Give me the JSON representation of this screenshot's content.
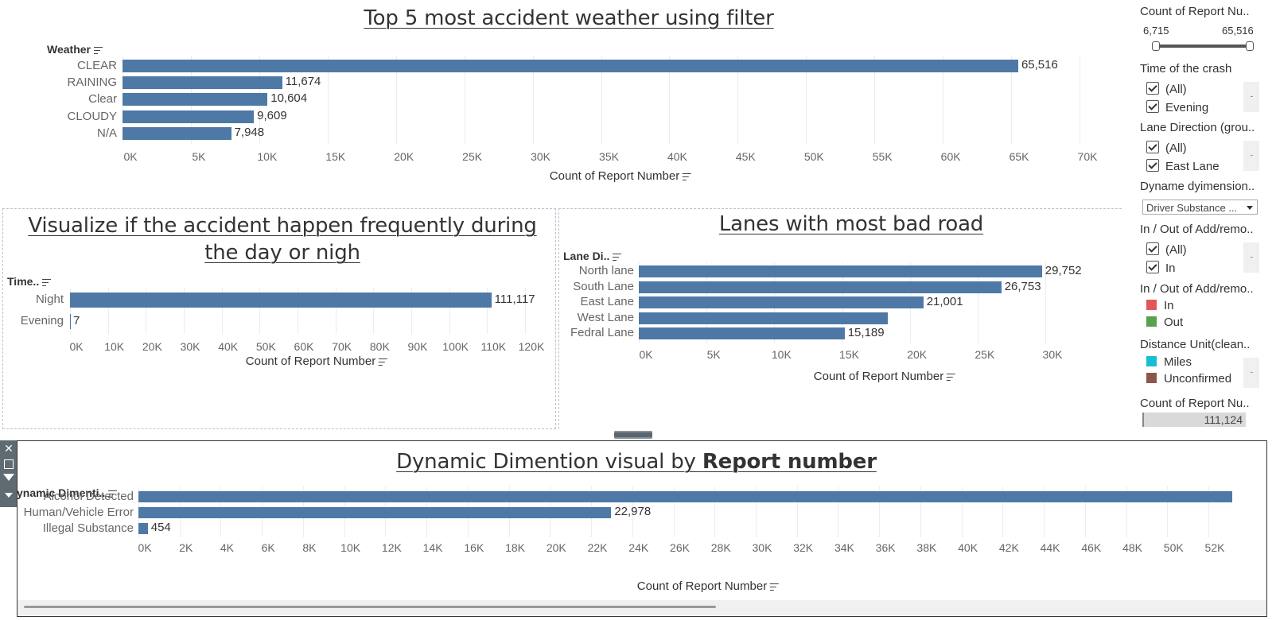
{
  "weather_chart": {
    "title": "Top 5 most accident weather using filter",
    "header": "Weather",
    "axis_title": "Count of Report Number",
    "ticks": [
      "0K",
      "5K",
      "10K",
      "15K",
      "20K",
      "25K",
      "30K",
      "35K",
      "40K",
      "45K",
      "50K",
      "55K",
      "60K",
      "65K",
      "70K"
    ],
    "rows": [
      {
        "label": "CLEAR",
        "value": 65516,
        "text": "65,516"
      },
      {
        "label": "RAINING",
        "value": 11674,
        "text": "11,674"
      },
      {
        "label": "Clear",
        "value": 10604,
        "text": "10,604"
      },
      {
        "label": "CLOUDY",
        "value": 9609,
        "text": "9,609"
      },
      {
        "label": "N/A",
        "value": 7948,
        "text": "7,948"
      }
    ]
  },
  "time_chart": {
    "title": "Visualize if the accident happen frequently during the day or nigh",
    "header": "Time..",
    "axis_title": "Count of Report Number",
    "ticks": [
      "0K",
      "10K",
      "20K",
      "30K",
      "40K",
      "50K",
      "60K",
      "70K",
      "80K",
      "90K",
      "100K",
      "110K",
      "120K"
    ],
    "rows": [
      {
        "label": "Night",
        "value": 111117,
        "text": "111,117"
      },
      {
        "label": "Evening",
        "value": 7,
        "text": "7"
      }
    ]
  },
  "lane_chart": {
    "title": "Lanes with most bad road",
    "header": "Lane Di..",
    "axis_title": "Count of Report Number",
    "ticks": [
      "0K",
      "5K",
      "10K",
      "15K",
      "20K",
      "25K",
      "30K"
    ],
    "rows": [
      {
        "label": "North lane",
        "value": 29752,
        "text": "29,752"
      },
      {
        "label": "South Lane",
        "value": 26753,
        "text": "26,753"
      },
      {
        "label": "East Lane",
        "value": 21001,
        "text": "21,001"
      },
      {
        "label": "West Lane",
        "value": 18400,
        "text": ""
      },
      {
        "label": "Fedral Lane",
        "value": 15189,
        "text": "15,189"
      }
    ]
  },
  "dynamic_chart": {
    "title_plain": "Dynamic Dimention visual by ",
    "title_bold": "Report number",
    "header": "ynamic Dimenti..",
    "axis_title": "Count of Report Number",
    "ticks": [
      "0K",
      "2K",
      "4K",
      "6K",
      "8K",
      "10K",
      "12K",
      "14K",
      "16K",
      "18K",
      "20K",
      "22K",
      "24K",
      "26K",
      "28K",
      "30K",
      "32K",
      "34K",
      "36K",
      "38K",
      "40K",
      "42K",
      "44K",
      "46K",
      "48K",
      "50K",
      "52K"
    ],
    "rows": [
      {
        "label": "Alcohol Detected",
        "value": 53500,
        "text": ""
      },
      {
        "label": "Human/Vehicle Error",
        "value": 22978,
        "text": "22,978"
      },
      {
        "label": "Illegal Substance",
        "value": 454,
        "text": "454"
      }
    ]
  },
  "chart_data": [
    {
      "type": "bar",
      "title": "Top 5 most accident weather using filter",
      "xlabel": "Count of Report Number",
      "ylabel": "Weather",
      "categories": [
        "CLEAR",
        "RAINING",
        "Clear",
        "CLOUDY",
        "N/A"
      ],
      "values": [
        65516,
        11674,
        10604,
        9609,
        7948
      ],
      "xlim": [
        0,
        70000
      ]
    },
    {
      "type": "bar",
      "title": "Visualize if the accident happen frequently during the day or nigh",
      "xlabel": "Count of Report Number",
      "ylabel": "Time..",
      "categories": [
        "Night",
        "Evening"
      ],
      "values": [
        111117,
        7
      ],
      "xlim": [
        0,
        120000
      ]
    },
    {
      "type": "bar",
      "title": "Lanes with most bad road",
      "xlabel": "Count of Report Number",
      "ylabel": "Lane Di..",
      "categories": [
        "North lane",
        "South Lane",
        "East Lane",
        "West Lane",
        "Fedral Lane"
      ],
      "values": [
        29752,
        26753,
        21001,
        18400,
        15189
      ],
      "xlim": [
        0,
        30000
      ]
    },
    {
      "type": "bar",
      "title": "Dynamic Dimention visual by Report number",
      "xlabel": "Count of Report Number",
      "ylabel": "ynamic Dimenti..",
      "categories": [
        "Alcohol Detected",
        "Human/Vehicle Error",
        "Illegal Substance"
      ],
      "values": [
        53500,
        22978,
        454
      ],
      "xlim": [
        0,
        52000
      ]
    }
  ],
  "filters": {
    "count_range": {
      "title": "Count of Report Nu..",
      "min": "6,715",
      "max": "65,516"
    },
    "time_of_crash": {
      "title": "Time of the crash",
      "items": [
        "(All)",
        "Evening"
      ]
    },
    "lane_direction": {
      "title": "Lane Direction (grou..",
      "items": [
        "(All)",
        "East Lane"
      ]
    },
    "dyname": {
      "title": "Dyname dyimension..",
      "selected": "Driver Substance ..."
    },
    "in_out_check": {
      "title": "In / Out of Add/remo..",
      "items": [
        "(All)",
        "In"
      ]
    },
    "in_out_legend": {
      "title": "In / Out of Add/remo..",
      "items": [
        {
          "label": "In",
          "color": "#e15759"
        },
        {
          "label": "Out",
          "color": "#59a14f"
        }
      ]
    },
    "distance_unit": {
      "title": "Distance Unit(clean..",
      "items": [
        {
          "label": "Miles",
          "color": "#17becf"
        },
        {
          "label": "Unconfirmed",
          "color": "#8c564b"
        }
      ]
    },
    "count_total": {
      "title": "Count of Report Nu..",
      "value": "111,124"
    }
  },
  "colors": {
    "bar": "#4e79a7"
  }
}
